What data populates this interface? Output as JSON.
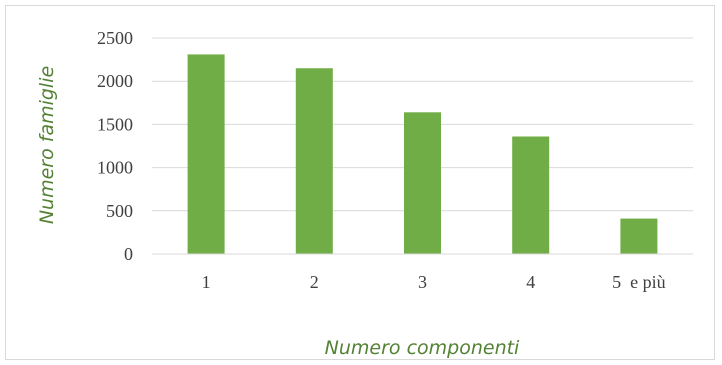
{
  "chart_data": {
    "type": "bar",
    "categories": [
      "1",
      "2",
      "3",
      "4",
      "5  e più"
    ],
    "values": [
      2310,
      2150,
      1640,
      1360,
      410
    ],
    "xlabel": "Numero componenti",
    "ylabel": "Numero famiglie",
    "ylim": [
      0,
      2500
    ],
    "yticks": [
      0,
      500,
      1000,
      1500,
      2000,
      2500
    ],
    "grid": true,
    "bar_color": "#70ad47",
    "gridline_color": "#d9d9d9",
    "axis_title_color": "#548235",
    "legend": "none"
  }
}
